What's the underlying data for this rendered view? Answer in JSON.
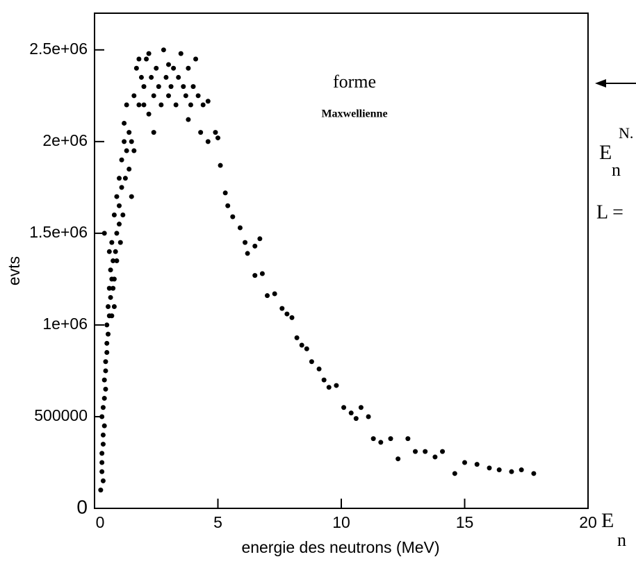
{
  "chart_data": {
    "type": "scatter",
    "xlabel": "energie des neutrons (MeV)",
    "ylabel": "evts",
    "annotations": [
      "forme",
      "Maxwellienne",
      "E",
      "N.",
      "n",
      "L =",
      "E",
      "n"
    ],
    "color": "#000000",
    "xlim": [
      0,
      20
    ],
    "xticks": [
      0,
      5,
      10,
      15,
      20
    ],
    "ylim": [
      0,
      2700000
    ],
    "yticks": [
      0,
      500000,
      {
        "value": 1000000,
        "label": "1e+06"
      },
      {
        "value": 1500000,
        "label": "1.5e+06"
      },
      {
        "value": 2000000,
        "label": "2e+06"
      },
      {
        "value": 2500000,
        "label": "2.5e+06"
      }
    ],
    "x": [
      0.25,
      0.3,
      0.3,
      0.35,
      0.3,
      0.4,
      0.4,
      0.45,
      0.5,
      0.5,
      0.55,
      0.6,
      0.65,
      0.6,
      0.4,
      0.7,
      0.75,
      0.8,
      0.8,
      0.9,
      0.9,
      1.0,
      1.0,
      1.1,
      1.1,
      1.2,
      1.2,
      1.3,
      1.3,
      1.4,
      1.5,
      1.5,
      1.6,
      1.7,
      1.8,
      1.9,
      2.0,
      2.1,
      2.2,
      2.3,
      2.4,
      2.5,
      2.6,
      2.7,
      2.8,
      2.9,
      3.0,
      3.1,
      3.2,
      3.3,
      3.4,
      3.5,
      3.6,
      3.7,
      3.8,
      3.9,
      4.0,
      4.1,
      4.2,
      4.4,
      4.6,
      3.8,
      4.3,
      4.6,
      4.9,
      5.0,
      5.1,
      5.3,
      5.4,
      5.6,
      5.9,
      6.1,
      6.2,
      6.5,
      6.7,
      6.5,
      6.8,
      7.0,
      7.3,
      7.6,
      7.8,
      8.0,
      8.2,
      8.4,
      8.6,
      8.8,
      9.1,
      9.3,
      9.5,
      9.8,
      10.1,
      10.4,
      10.6,
      10.8,
      11.1,
      11.3,
      11.6,
      12.0,
      12.3,
      12.7,
      13.0,
      13.4,
      13.8,
      14.1,
      14.6,
      15.0,
      15.5,
      16.0,
      16.4,
      16.9,
      17.3,
      17.8,
      0.35,
      0.3,
      0.35,
      0.4,
      0.35,
      0.45,
      0.45,
      0.5,
      0.55,
      0.6,
      0.65,
      0.7,
      0.75,
      0.85,
      0.7,
      0.8,
      0.9,
      1.0,
      1.05,
      1.15,
      1.25,
      1.4,
      1.6,
      1.8,
      2.0,
      2.2,
      2.4,
      3.0
    ],
    "values": [
      100000,
      200000,
      300000,
      400000,
      500000,
      600000,
      700000,
      800000,
      900000,
      1000000,
      1100000,
      1200000,
      1300000,
      1400000,
      1500000,
      1450000,
      1350000,
      1250000,
      1600000,
      1500000,
      1700000,
      1650000,
      1800000,
      1900000,
      1750000,
      2000000,
      2100000,
      1950000,
      2200000,
      1850000,
      2000000,
      1700000,
      2250000,
      2400000,
      2200000,
      2350000,
      2300000,
      2450000,
      2150000,
      2350000,
      2250000,
      2400000,
      2300000,
      2200000,
      2500000,
      2350000,
      2250000,
      2300000,
      2400000,
      2200000,
      2350000,
      2480000,
      2300000,
      2250000,
      2400000,
      2200000,
      2300000,
      2450000,
      2250000,
      2200000,
      2220000,
      2120000,
      2050000,
      2000000,
      2050000,
      2020000,
      1870000,
      1720000,
      1650000,
      1590000,
      1530000,
      1450000,
      1390000,
      1430000,
      1470000,
      1270000,
      1280000,
      1160000,
      1170000,
      1090000,
      1060000,
      1040000,
      930000,
      890000,
      870000,
      800000,
      760000,
      700000,
      660000,
      670000,
      550000,
      520000,
      490000,
      550000,
      500000,
      380000,
      360000,
      380000,
      270000,
      380000,
      310000,
      310000,
      280000,
      310000,
      190000,
      250000,
      240000,
      220000,
      210000,
      200000,
      210000,
      190000,
      150000,
      250000,
      350000,
      450000,
      550000,
      650000,
      750000,
      850000,
      950000,
      1050000,
      1150000,
      1250000,
      1200000,
      1400000,
      1050000,
      1100000,
      1350000,
      1550000,
      1450000,
      1600000,
      1800000,
      2050000,
      1950000,
      2450000,
      2200000,
      2480000,
      2050000,
      2420000
    ]
  }
}
